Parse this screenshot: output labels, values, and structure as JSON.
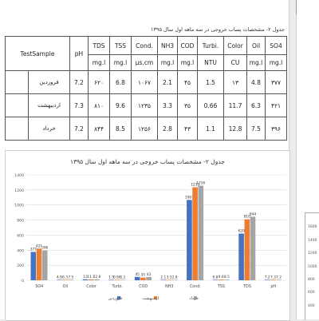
{
  "table": {
    "caption": "جدول ۲- مشخصات پساب خروجی در سه ماهه اول سال ۱۳۹۵",
    "header_test": "TestSample",
    "columns": [
      "pH",
      "TDS",
      "TSS",
      "Cond.",
      "NH3",
      "COD",
      "Turbi.",
      "Color",
      "Oil",
      "SO4"
    ],
    "units": [
      "",
      "mg.l",
      "mg.l",
      "µs.cm",
      "mg.l",
      "mg.l",
      "NTU",
      "CU",
      "mg.l",
      "mg.l"
    ],
    "rows": [
      {
        "label": "فروردین",
        "cells": [
          "7.2",
          "۶۲۰",
          "6.8",
          "۱۰۶۷",
          "2.1",
          "۴۵",
          "1.5",
          "۱۳",
          "4.8",
          "۳۷۷"
        ]
      },
      {
        "label": "اردیبهشت",
        "cells": [
          "7.3",
          "۸۱۰",
          "9.6",
          "۱۲۳۵",
          "3.3",
          "۳۵",
          "0.66",
          "11.7",
          "6.3",
          "۴۲۱"
        ]
      },
      {
        "label": "خرداد",
        "cells": [
          "7.2",
          "۸۴۴",
          "8.5",
          "۱۲۵۶",
          "2.8",
          "۴۳",
          "1.1",
          "12.8",
          "7.5",
          "۳۹۶"
        ]
      }
    ]
  },
  "chart_data": {
    "type": "bar",
    "title": "جدول ۲- مشخصات پساب خروجی در سه ماهه اول سال ۱۳۹۵",
    "categories": [
      "SO4",
      "Oil",
      "Color",
      "Turbi.",
      "COD",
      "NH3",
      "Cond.",
      "TSS",
      "TDS",
      "pH"
    ],
    "series": [
      {
        "name": "فروردین",
        "color": "#4472C4",
        "values": [
          377,
          4.8,
          13,
          1.5,
          45,
          2.1,
          1067,
          6.8,
          620,
          7.2
        ],
        "labels": [
          "377",
          "4.8",
          "13",
          "1.5",
          "45",
          "2.1",
          "1067",
          "6.8",
          "620",
          "7.2"
        ]
      },
      {
        "name": "اردیبهشت",
        "color": "#ED7D31",
        "values": [
          421,
          6.3,
          11.7,
          0.66,
          35,
          3.3,
          1235,
          9.6,
          810,
          7.3
        ],
        "labels": [
          "421",
          "6.3",
          "11.7",
          "0.66",
          "35",
          "3.3",
          "1235",
          "9.6",
          "810",
          "7.3"
        ]
      },
      {
        "name": "خرداد",
        "color": "#A5A5A5",
        "values": [
          396,
          7.5,
          12.8,
          1.1,
          43,
          2.8,
          1256,
          8.5,
          844,
          7.2
        ],
        "labels": [
          "396",
          "7.5",
          "12.8",
          "1.1",
          "43",
          "2.8",
          "1256",
          "8.5",
          "844",
          "7.2"
        ]
      }
    ],
    "ylim": [
      0,
      1400
    ],
    "yticks": [
      "0",
      "200",
      "400",
      "600",
      "800",
      "1000",
      "1200",
      "1400"
    ],
    "grid": true,
    "legend": "bottom"
  },
  "side_chart": {
    "yticks": [
      "1600",
      "1400",
      "1200",
      "1000",
      "800",
      "600",
      "400"
    ]
  }
}
